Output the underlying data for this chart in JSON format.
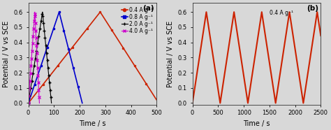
{
  "subplot_a": {
    "label": "(a)",
    "curves": [
      {
        "label": "0.4 A g⁻¹",
        "color": "#cc2200",
        "charge_t": [
          0,
          280
        ],
        "charge_v": [
          0.0,
          0.6
        ],
        "discharge_t": [
          280,
          500
        ],
        "discharge_v": [
          0.6,
          0.02
        ],
        "style": "solid",
        "marker": "o",
        "markersize": 1.5,
        "linewidth": 1.2
      },
      {
        "label": "0.8 A g⁻¹",
        "color": "#0000cc",
        "charge_t": [
          0,
          120
        ],
        "charge_v": [
          0.0,
          0.6
        ],
        "discharge_t": [
          120,
          210
        ],
        "discharge_v": [
          0.6,
          0.0
        ],
        "style": "solid",
        "marker": "s",
        "markersize": 1.5,
        "linewidth": 1.2
      },
      {
        "label": "2.0 A g⁻¹",
        "color": "#000000",
        "charge_t": [
          0,
          55
        ],
        "charge_v": [
          0.0,
          0.6
        ],
        "discharge_t": [
          55,
          90
        ],
        "discharge_v": [
          0.6,
          0.0
        ],
        "style": "solid",
        "marker": "+",
        "markersize": 3.0,
        "linewidth": 0.8
      },
      {
        "label": "4.0 A g⁻¹",
        "color": "#cc00cc",
        "charge_t": [
          0,
          25
        ],
        "charge_v": [
          0.0,
          0.6
        ],
        "discharge_t": [
          25,
          43
        ],
        "discharge_v": [
          0.6,
          0.0
        ],
        "style": "solid",
        "marker": "x",
        "markersize": 3.0,
        "linewidth": 0.8
      }
    ],
    "xlim": [
      0,
      500
    ],
    "ylim": [
      -0.01,
      0.66
    ],
    "xticks": [
      0,
      100,
      200,
      300,
      400,
      500
    ],
    "yticks": [
      0.0,
      0.1,
      0.2,
      0.3,
      0.4,
      0.5,
      0.6
    ],
    "xlabel": "Time / s",
    "ylabel": "Potential / V vs SCE"
  },
  "subplot_b": {
    "label": "(b)",
    "annotation": "0.4 A g⁻¹",
    "color": "#cc2200",
    "cycle_half_period": 270,
    "num_points": 11,
    "xlim": [
      0,
      2500
    ],
    "ylim": [
      -0.01,
      0.66
    ],
    "xticks": [
      0,
      500,
      1000,
      1500,
      2000,
      2500
    ],
    "yticks": [
      0.0,
      0.1,
      0.2,
      0.3,
      0.4,
      0.5,
      0.6
    ],
    "xlabel": "Time / s",
    "ylabel": "Potential / V vs SCE"
  },
  "background_color": "#d8d8d8",
  "plot_bg": "#e8e8e8",
  "legend_fontsize": 5.5,
  "axis_label_fontsize": 7,
  "tick_fontsize": 6
}
